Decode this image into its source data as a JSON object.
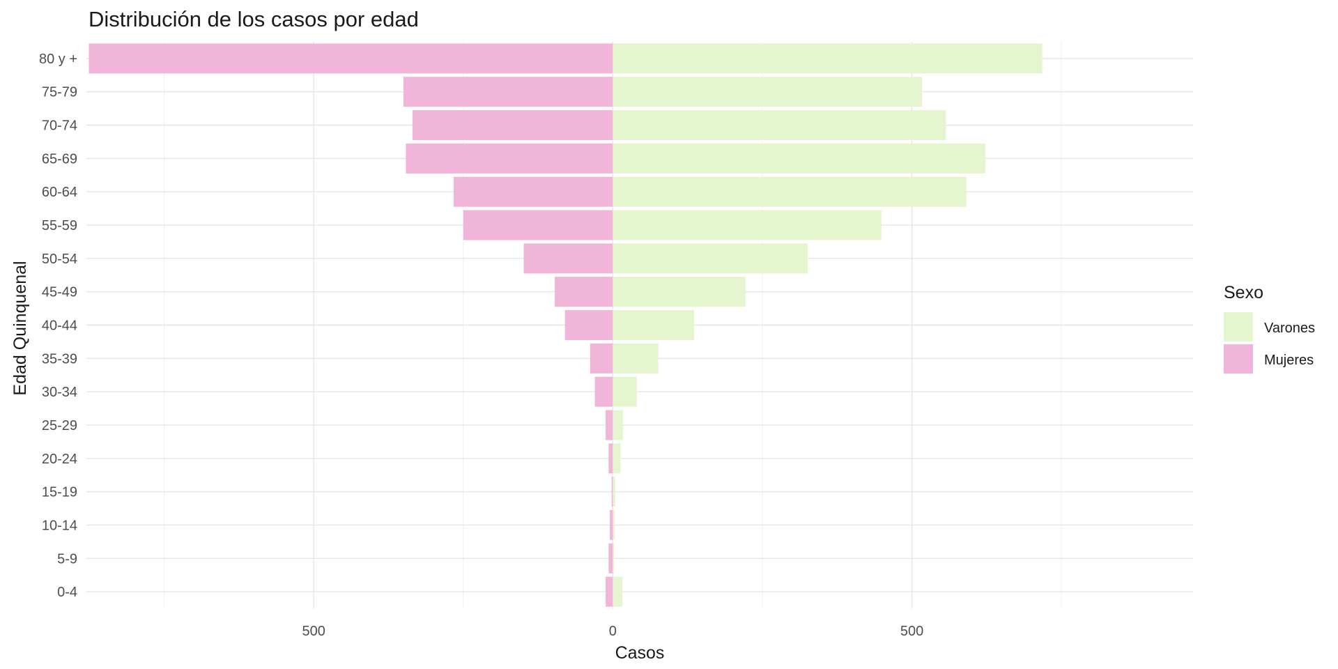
{
  "chart_data": {
    "type": "bar",
    "orientation": "horizontal",
    "layout": "population-pyramid",
    "title": "Distribución de los casos por edad",
    "xlabel": "Casos",
    "ylabel": "Edad Quinquenal",
    "xlim": [
      -880,
      970
    ],
    "x_ticks": [
      {
        "value": -500,
        "label": "500"
      },
      {
        "value": 0,
        "label": "0"
      },
      {
        "value": 500,
        "label": "500"
      }
    ],
    "grid": true,
    "legend": {
      "title": "Sexo",
      "position": "right"
    },
    "categories": [
      "80 y +",
      "75-79",
      "70-74",
      "65-69",
      "60-64",
      "55-59",
      "50-54",
      "45-49",
      "40-44",
      "35-39",
      "30-34",
      "25-29",
      "20-24",
      "15-19",
      "10-14",
      "5-9",
      "0-4"
    ],
    "series": [
      {
        "name": "Varones",
        "color": "#e5f5d0",
        "values": [
          718,
          517,
          557,
          623,
          591,
          449,
          326,
          222,
          136,
          76,
          40,
          17,
          13,
          4,
          3,
          2,
          16
        ]
      },
      {
        "name": "Mujeres",
        "color": "#f2b5da",
        "values": [
          876,
          350,
          335,
          346,
          266,
          250,
          149,
          97,
          80,
          38,
          30,
          12,
          7,
          2,
          5,
          7,
          12
        ]
      }
    ]
  }
}
